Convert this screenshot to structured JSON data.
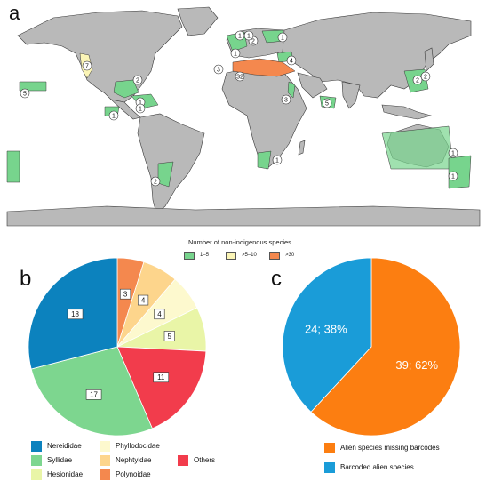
{
  "panels": {
    "a": "a",
    "b": "b",
    "c": "c"
  },
  "map": {
    "legend_title": "Number of non-indigenous species",
    "legend_items": [
      {
        "label": "1–5",
        "color": "#77d48d"
      },
      {
        "label": ">5–10",
        "color": "#fbf5b6"
      },
      {
        "label": ">30",
        "color": "#f4884e"
      }
    ],
    "land_color": "#b9b9b9",
    "region_labels": [
      "7",
      "5",
      "2",
      "1",
      "1",
      "1",
      "2",
      "1",
      "3",
      "1",
      "2",
      "4",
      "32",
      "3",
      "5",
      "2",
      "1",
      "1",
      "1",
      "2",
      "1",
      "1"
    ]
  },
  "chart_data": [
    {
      "type": "pie",
      "id": "b",
      "categories": [
        "Polynoidae",
        "Nephtyidae",
        "Phyllodocidae",
        "Hesionidae",
        "Others",
        "Syllidae",
        "Nereididae"
      ],
      "values": [
        3,
        4,
        4,
        5,
        11,
        17,
        18
      ],
      "data_labels": [
        "3",
        "4",
        "4",
        "5",
        "11",
        "17",
        "18"
      ],
      "colors": [
        "#f4884e",
        "#fdd58c",
        "#fdf9ce",
        "#e9f5a7",
        "#f23c4c",
        "#7dd68f",
        "#0c82be"
      ],
      "legend": [
        {
          "label": "Nereididae",
          "color": "#0c82be"
        },
        {
          "label": "Syllidae",
          "color": "#7dd68f"
        },
        {
          "label": "Hesionidae",
          "color": "#e9f5a7"
        },
        {
          "label": "Phyllodocidae",
          "color": "#fdf9ce"
        },
        {
          "label": "Nephtyidae",
          "color": "#fdd58c"
        },
        {
          "label": "Polynoidae",
          "color": "#f4884e"
        },
        {
          "label": "Others",
          "color": "#f23c4c"
        }
      ]
    },
    {
      "type": "pie",
      "id": "c",
      "categories": [
        "Alien species missing barcodes",
        "Barcoded alien species"
      ],
      "values": [
        39,
        24
      ],
      "data_labels": [
        "39; 62%",
        "24; 38%"
      ],
      "colors": [
        "#fc7e11",
        "#1a9cd8"
      ],
      "legend": [
        {
          "label": "Alien species missing barcodes",
          "color": "#fc7e11"
        },
        {
          "label": "Barcoded alien species",
          "color": "#1a9cd8"
        }
      ]
    }
  ]
}
